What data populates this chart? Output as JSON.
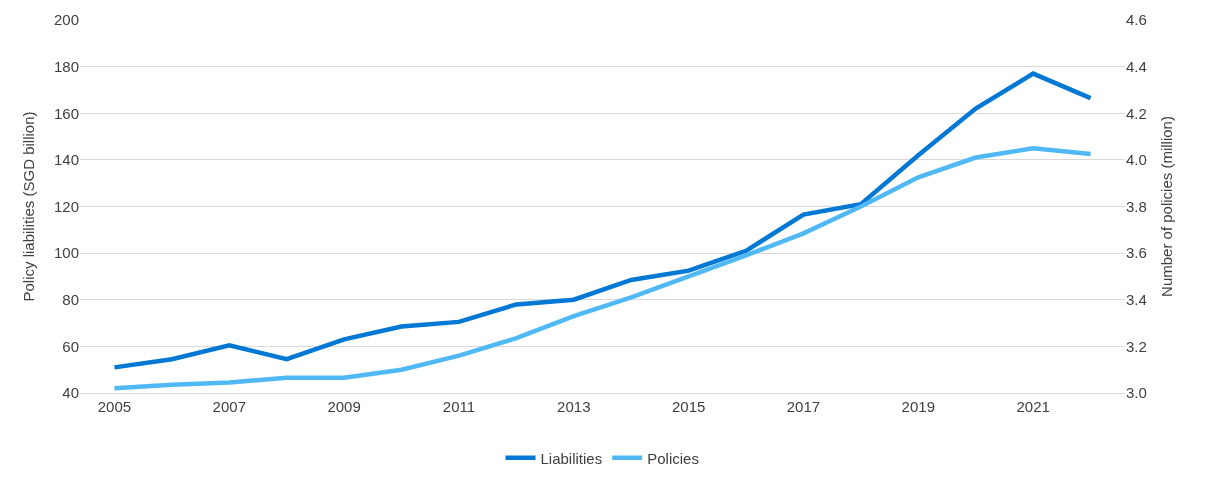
{
  "chart_data": {
    "type": "line",
    "ylabel": "Policy liabilities (SGD billion)",
    "y2label": "Number of policies (million)",
    "x": [
      2005,
      2006,
      2007,
      2008,
      2009,
      2010,
      2011,
      2012,
      2013,
      2014,
      2015,
      2016,
      2017,
      2018,
      2019,
      2020,
      2021,
      2022
    ],
    "series": [
      {
        "name": "Liabilities",
        "color": "#0078d4",
        "values": [
          51,
          54.5,
          60.5,
          54.5,
          63,
          68.5,
          70.5,
          78,
          80,
          88.5,
          92.5,
          101,
          116.5,
          121,
          142,
          162,
          177,
          166.5
        ]
      },
      {
        "name": "Policies",
        "color": "#50b9f5",
        "axis": "y2",
        "values": [
          3.02,
          3.035,
          3.045,
          3.065,
          3.065,
          3.1,
          3.16,
          3.235,
          3.33,
          3.41,
          3.5,
          3.59,
          3.685,
          3.8,
          3.925,
          4.01,
          4.05,
          4.025
        ]
      }
    ],
    "xlim": [
      2004.4,
      2022.6
    ],
    "xticks": [
      2005,
      2007,
      2009,
      2011,
      2013,
      2015,
      2017,
      2019,
      2021
    ],
    "ylim": [
      40,
      200
    ],
    "yticks": [
      40,
      60,
      80,
      100,
      120,
      140,
      160,
      180,
      200
    ],
    "y2lim": [
      3.0,
      4.6
    ],
    "y2ticks": [
      {
        "value": 3.0,
        "label": "3.0"
      },
      {
        "value": 3.2,
        "label": "3.2"
      },
      {
        "value": 3.4,
        "label": "3.4"
      },
      {
        "value": 3.6,
        "label": "3.6"
      },
      {
        "value": 3.8,
        "label": "3.8"
      },
      {
        "value": 4.0,
        "label": "4.0"
      },
      {
        "value": 4.2,
        "label": "4.2"
      },
      {
        "value": 4.4,
        "label": "4.4"
      },
      {
        "value": 4.6,
        "label": "4.6"
      }
    ],
    "grid": "y",
    "legend": "bottom",
    "marker": "none",
    "line_style": "solid"
  }
}
